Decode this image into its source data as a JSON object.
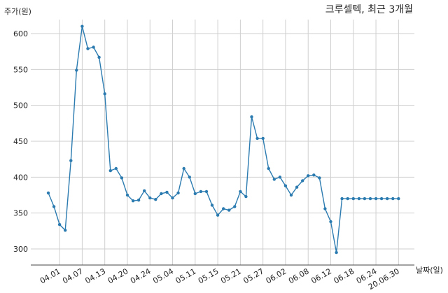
{
  "chart_data": {
    "type": "line",
    "title": "크루셀텍, 최근 3개월",
    "xlabel": "날짜(일)",
    "ylabel": "주가(원)",
    "ylim": [
      280,
      622
    ],
    "grid": true,
    "yticks": [
      300,
      350,
      400,
      450,
      500,
      550,
      600
    ],
    "xtick_labels": [
      "04.01",
      "04.07",
      "04.13",
      "04.20",
      "04.24",
      "05.04",
      "05.11",
      "05.15",
      "05.21",
      "05.27",
      "06.02",
      "06.08",
      "06.12",
      "06.18",
      "06.24",
      "20.06.30"
    ],
    "xtick_index": [
      2,
      6,
      10,
      14,
      18,
      22,
      26,
      30,
      34,
      38,
      42,
      46,
      50,
      54,
      58,
      62
    ],
    "series_color": "#2b7bb0",
    "values": [
      378,
      359,
      334,
      326,
      423,
      549,
      610,
      579,
      581,
      567,
      516,
      409,
      412,
      399,
      375,
      367,
      368,
      381,
      371,
      369,
      377,
      379,
      371,
      378,
      412,
      400,
      377,
      380,
      380,
      361,
      347,
      356,
      354,
      359,
      380,
      373,
      484,
      454,
      454,
      412,
      397,
      400,
      388,
      375,
      386,
      395,
      402,
      403,
      399,
      356,
      338,
      295,
      370,
      370,
      370,
      370,
      370,
      370,
      370,
      370,
      370,
      370,
      370
    ]
  }
}
